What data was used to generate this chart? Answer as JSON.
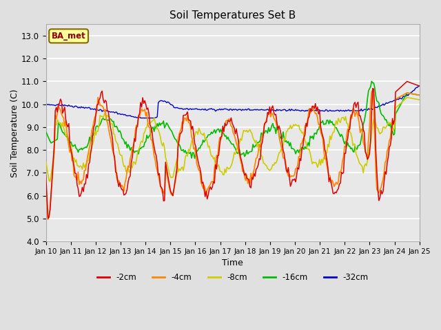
{
  "title": "Soil Temperatures Set B",
  "xlabel": "Time",
  "ylabel": "Soil Temperature (C)",
  "ylim": [
    4.0,
    13.5
  ],
  "yticks": [
    4.0,
    5.0,
    6.0,
    7.0,
    8.0,
    9.0,
    10.0,
    11.0,
    12.0,
    13.0
  ],
  "xtick_labels": [
    "Jan 10",
    "Jan 11",
    "Jan 12",
    "Jan 13",
    "Jan 14",
    "Jan 15",
    "Jan 16",
    "Jan 17",
    "Jan 18",
    "Jan 19",
    "Jan 20",
    "Jan 21",
    "Jan 22",
    "Jan 23",
    "Jan 24",
    "Jan 25"
  ],
  "legend_entries": [
    "-2cm",
    "-4cm",
    "-8cm",
    "-16cm",
    "-32cm"
  ],
  "line_colors": [
    "#dd0000",
    "#ff8800",
    "#cccc00",
    "#00bb00",
    "#0000cc"
  ],
  "background_color": "#e0e0e0",
  "plot_bg_color": "#e8e8e8",
  "annotation_text": "BA_met",
  "annotation_bg": "#ffff99",
  "annotation_edge": "#886600"
}
